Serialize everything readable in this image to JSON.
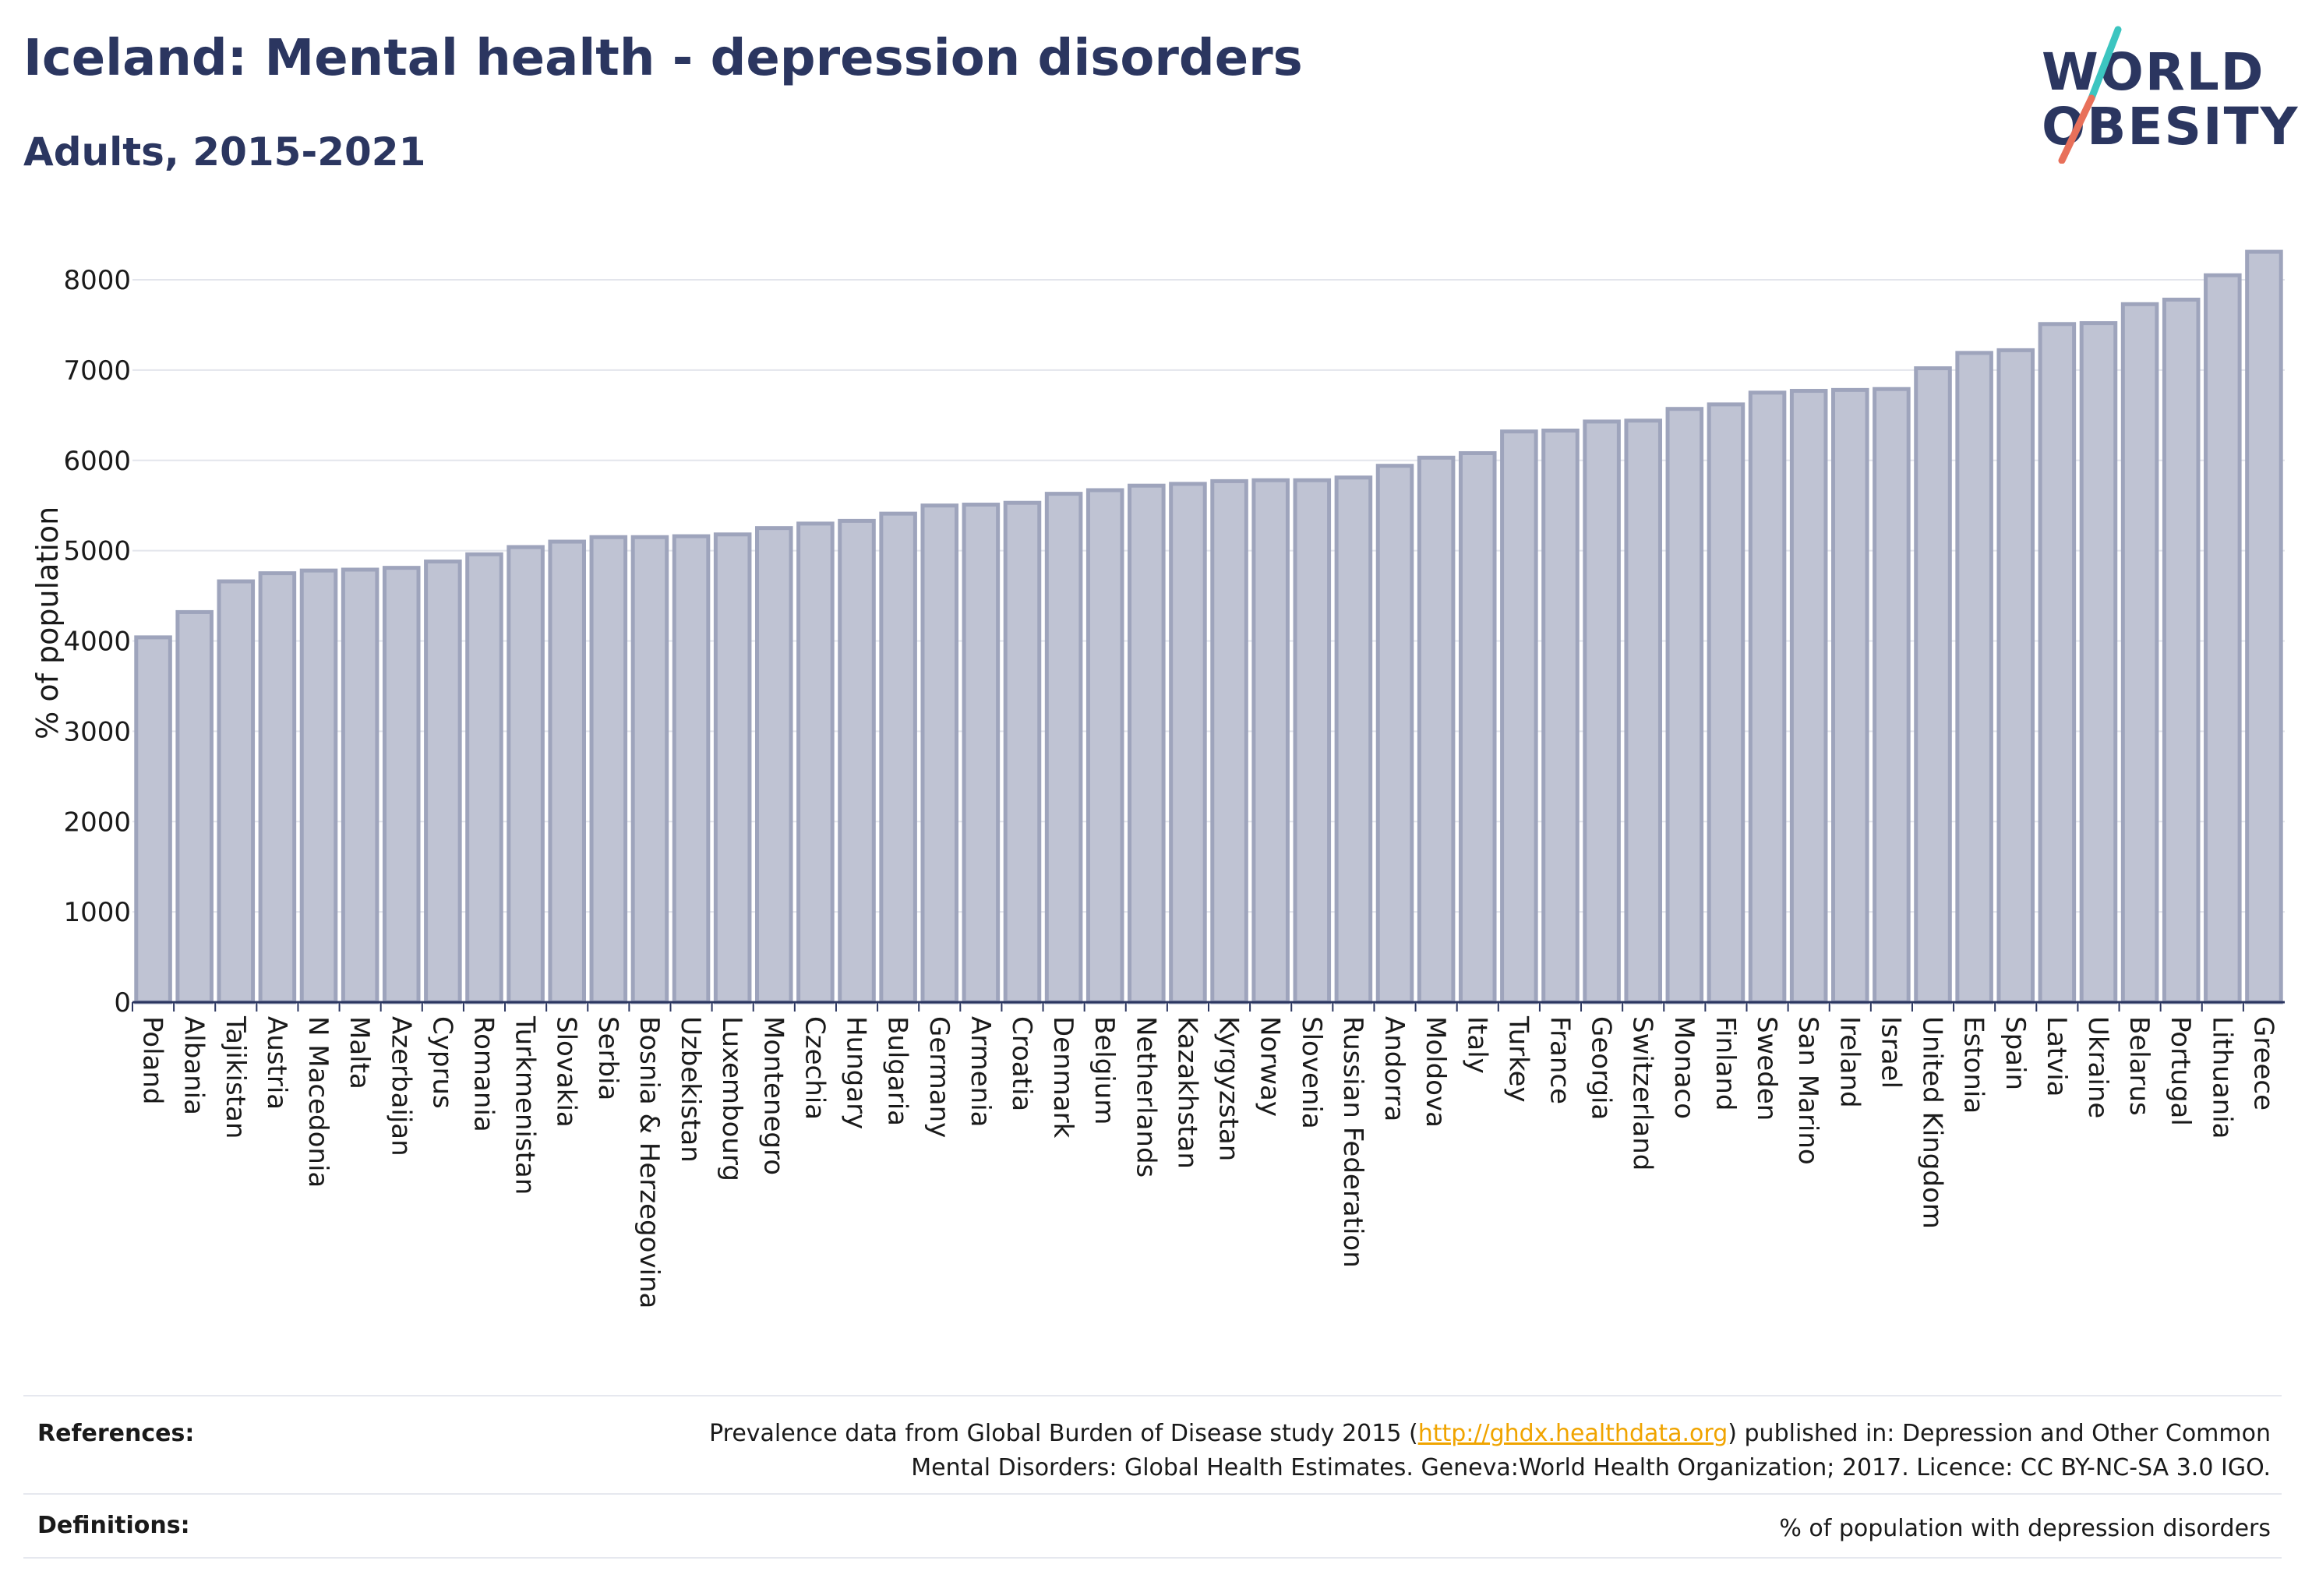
{
  "header": {
    "title": "Iceland: Mental health - depression disorders",
    "subtitle": "Adults, 2015-2021"
  },
  "logo": {
    "line1": "WORLD",
    "line2": "OBESITY",
    "colors": {
      "text": "#2b3660",
      "slash_top": "#3cc5c0",
      "slash_bottom": "#e8705a"
    }
  },
  "chart_data": {
    "type": "bar",
    "ylabel": "% of population",
    "ylim": [
      0,
      8500
    ],
    "yticks": [
      0,
      1000,
      2000,
      3000,
      4000,
      5000,
      6000,
      7000,
      8000
    ],
    "grid": true,
    "bar_color": "#bfc3d3",
    "bar_edge_color": "#9ea4bc",
    "categories": [
      "Poland",
      "Albania",
      "Tajikistan",
      "Austria",
      "N Macedonia",
      "Malta",
      "Azerbaijan",
      "Cyprus",
      "Romania",
      "Turkmenistan",
      "Slovakia",
      "Serbia",
      "Bosnia & Herzegovina",
      "Uzbekistan",
      "Luxembourg",
      "Montenegro",
      "Czechia",
      "Hungary",
      "Bulgaria",
      "Germany",
      "Armenia",
      "Croatia",
      "Denmark",
      "Belgium",
      "Netherlands",
      "Kazakhstan",
      "Kyrgyzstan",
      "Norway",
      "Slovenia",
      "Russian Federation",
      "Andorra",
      "Moldova",
      "Italy",
      "Turkey",
      "France",
      "Georgia",
      "Switzerland",
      "Monaco",
      "Finland",
      "Sweden",
      "San Marino",
      "Ireland",
      "Israel",
      "United Kingdom",
      "Estonia",
      "Spain",
      "Latvia",
      "Ukraine",
      "Belarus",
      "Portugal",
      "Lithuania",
      "Greece"
    ],
    "values": [
      4040,
      4320,
      4660,
      4750,
      4780,
      4790,
      4810,
      4880,
      4960,
      5040,
      5100,
      5150,
      5150,
      5160,
      5180,
      5250,
      5300,
      5330,
      5410,
      5500,
      5510,
      5530,
      5630,
      5670,
      5720,
      5740,
      5770,
      5780,
      5780,
      5810,
      5940,
      6030,
      6080,
      6320,
      6330,
      6430,
      6440,
      6570,
      6620,
      6750,
      6770,
      6780,
      6790,
      7020,
      7190,
      7220,
      7510,
      7520,
      7730,
      7780,
      8050,
      8310
    ]
  },
  "references": {
    "label": "References:",
    "text_before": "Prevalence data from Global Burden of Disease study 2015 (",
    "link": "http://ghdx.healthdata.org",
    "text_after": ") published in: Depression and Other Common Mental Disorders: Global Health Estimates. Geneva:World Health Organization; 2017. Licence: CC BY-NC-SA 3.0 IGO."
  },
  "definitions": {
    "label": "Definitions:",
    "text": "% of population with depression disorders"
  }
}
